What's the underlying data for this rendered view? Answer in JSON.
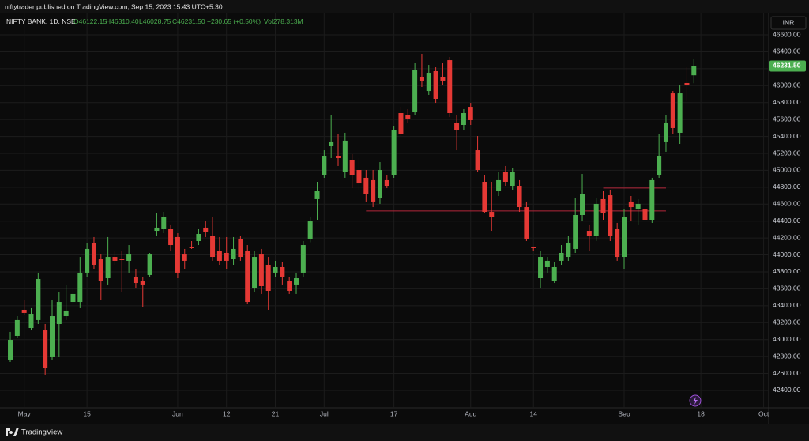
{
  "header": {
    "publisher": "niftytrader published on TradingView.com, Sep 15, 2023 15:43 UTC+5:30",
    "brand": "TradingView"
  },
  "chart_data": {
    "type": "candlestick",
    "title": "NIFTY BANK, 1D, NSE",
    "legend_values": [
      "O46122.15",
      "H46310.40",
      "L46028.75",
      "C46231.50",
      "+230.65 (+0.50%)",
      "Vol278.313M"
    ],
    "currency": "INR",
    "last_price_label": "46231.50",
    "up_color": "#4caf50",
    "down_color": "#e53935",
    "grid": true,
    "categories": [
      null,
      null,
      "May",
      null,
      null,
      null,
      null,
      null,
      null,
      null,
      null,
      "15",
      null,
      null,
      null,
      null,
      null,
      null,
      null,
      null,
      null,
      null,
      null,
      null,
      "Jun",
      null,
      null,
      null,
      null,
      null,
      null,
      "12",
      null,
      null,
      null,
      null,
      null,
      null,
      "21",
      null,
      null,
      null,
      null,
      null,
      null,
      "Jul",
      null,
      null,
      null,
      null,
      null,
      null,
      null,
      null,
      null,
      "17",
      null,
      null,
      null,
      null,
      null,
      null,
      null,
      null,
      null,
      null,
      "Aug",
      null,
      null,
      null,
      null,
      null,
      null,
      null,
      null,
      "14",
      null,
      null,
      null,
      null,
      null,
      null,
      null,
      null,
      null,
      null,
      null,
      null,
      "Sep",
      null,
      null,
      null,
      null,
      null,
      null,
      null,
      null,
      null,
      null,
      "18",
      null,
      null,
      null,
      null,
      null,
      null,
      null,
      null,
      "Oct"
    ],
    "open": [
      42764,
      43044,
      43352,
      43137,
      43231,
      43109,
      42792,
      43184,
      43277,
      43445,
      43445,
      43791,
      44136,
      43949,
      43725,
      43977,
      43949,
      43931,
      43744,
      43697,
      43763,
      44285,
      44304,
      44304,
      44211,
      44005,
      44090,
      44164,
      44323,
      44229,
      44043,
      44024,
      43949,
      44192,
      44043,
      43604,
      44005,
      43884,
      43791,
      43856,
      43697,
      43651,
      43791,
      44192,
      44659,
      44939,
      45284,
      45163,
      44976,
      45125,
      45004,
      44911,
      44883,
      44677,
      44883,
      44939,
      45676,
      45657,
      45685,
      46105,
      45937,
      46171,
      46096,
      46301,
      45564,
      45536,
      45741,
      45237,
      44864,
      44509,
      44752,
      44976,
      44817,
      44817,
      44565,
      44090,
      43725,
      43856,
      43697,
      43931,
      43977,
      44071,
      44472,
      44285,
      44229,
      44659,
      44705,
      44304,
      43977,
      44631,
      44537,
      44537,
      44416,
      44939,
      45331,
      45909,
      45443,
      46031,
      46122.15,
      null,
      null,
      null,
      null,
      null,
      null,
      null,
      null,
      null,
      null
    ],
    "high": [
      43091,
      43277,
      43464,
      43371,
      43791,
      43184,
      43464,
      43557,
      43651,
      43604,
      43977,
      44136,
      44211,
      44005,
      44211,
      44043,
      44043,
      44117,
      43837,
      43744,
      44024,
      44491,
      44509,
      44351,
      44257,
      44071,
      44164,
      44304,
      44397,
      44444,
      44211,
      44211,
      44211,
      44229,
      44117,
      44043,
      44071,
      43977,
      43931,
      43912,
      43744,
      43791,
      44164,
      44444,
      44864,
      45237,
      45657,
      45424,
      45443,
      45191,
      45144,
      45004,
      45004,
      45097,
      44939,
      45517,
      45751,
      45723,
      46264,
      46376,
      46245,
      46217,
      46264,
      46339,
      45657,
      45723,
      45797,
      45405,
      44939,
      44864,
      44976,
      45051,
      45032,
      44883,
      44631,
      44099,
      44043,
      43977,
      43912,
      44117,
      44229,
      44677,
      44957,
      44351,
      44677,
      44752,
      44771,
      44379,
      44537,
      44696,
      44659,
      44603,
      44911,
      45424,
      45657,
      45937,
      46003,
      46217,
      46310.4,
      null,
      null,
      null,
      null,
      null,
      null,
      null,
      null,
      null,
      null
    ],
    "low": [
      42736,
      43016,
      43296,
      43109,
      43184,
      42587,
      42764,
      42792,
      43231,
      43417,
      43371,
      43744,
      43837,
      43464,
      43651,
      43884,
      43557,
      43791,
      43604,
      43389,
      43744,
      44229,
      44257,
      44043,
      43725,
      43837,
      44071,
      44117,
      44211,
      43931,
      43884,
      43837,
      43884,
      43931,
      43417,
      43557,
      43539,
      43352,
      43744,
      43651,
      43539,
      43539,
      43744,
      44150,
      44416,
      44911,
      45144,
      45051,
      44911,
      44789,
      44771,
      44631,
      44565,
      44603,
      44789,
      44911,
      45405,
      45564,
      45657,
      45984,
      45891,
      45797,
      46003,
      45629,
      45237,
      45471,
      45536,
      44976,
      44491,
      44285,
      44696,
      44817,
      44771,
      44509,
      44164,
      44043,
      43604,
      43791,
      43669,
      43884,
      43931,
      44024,
      44397,
      44043,
      44164,
      44416,
      44164,
      43931,
      43837,
      44397,
      44351,
      44211,
      44379,
      44911,
      45219,
      45424,
      45312,
      45816,
      46028.75,
      null,
      null,
      null,
      null,
      null,
      null,
      null,
      null,
      null,
      null
    ],
    "close": [
      42997,
      43231,
      43315,
      43305,
      43716,
      42661,
      43277,
      43445,
      43343,
      43539,
      43791,
      44071,
      43884,
      43697,
      43977,
      43931,
      43940,
      44005,
      43669,
      43651,
      44005,
      44323,
      44444,
      44117,
      43791,
      43931,
      44080,
      44248,
      44276,
      43977,
      43931,
      43931,
      44071,
      43977,
      43445,
      43977,
      43632,
      43576,
      43856,
      43744,
      43576,
      43725,
      44117,
      44397,
      44752,
      45164,
      45331,
      45144,
      45350,
      44939,
      44845,
      44724,
      44631,
      45004,
      44817,
      45471,
      45424,
      45611,
      46189,
      46059,
      46152,
      45844,
      46059,
      45676,
      45471,
      45676,
      45592,
      45004,
      44509,
      44444,
      44883,
      44864,
      44976,
      44565,
      44192,
      44080,
      43977,
      43931,
      43856,
      44024,
      44136,
      44472,
      44724,
      44229,
      44603,
      44491,
      44229,
      43977,
      44444,
      44565,
      44603,
      44416,
      44883,
      45164,
      45564,
      45499,
      45909,
      46012,
      46231.5,
      null,
      null,
      null,
      null,
      null,
      null,
      null,
      null,
      null,
      null
    ],
    "levels": [
      {
        "value": 44520,
        "from": 51,
        "to": 94
      },
      {
        "value": 44790,
        "from": 85,
        "to": 94
      }
    ],
    "level_color": "#b2263a",
    "ylim": [
      42200,
      46700
    ],
    "yticks": [
      {
        "value": 42400,
        "label": "42400.00"
      },
      {
        "value": 42600,
        "label": "42600.00"
      },
      {
        "value": 42800,
        "label": "42800.00"
      },
      {
        "value": 43000,
        "label": "43000.00"
      },
      {
        "value": 43200,
        "label": "43200.00"
      },
      {
        "value": 43400,
        "label": "43400.00"
      },
      {
        "value": 43600,
        "label": "43600.00"
      },
      {
        "value": 43800,
        "label": "43800.00"
      },
      {
        "value": 44000,
        "label": "44000.00"
      },
      {
        "value": 44200,
        "label": "44200.00"
      },
      {
        "value": 44400,
        "label": "44400.00"
      },
      {
        "value": 44600,
        "label": "44600.00"
      },
      {
        "value": 44800,
        "label": "44800.00"
      },
      {
        "value": 45000,
        "label": "45000.00"
      },
      {
        "value": 45200,
        "label": "45200.00"
      },
      {
        "value": 45400,
        "label": "45400.00"
      },
      {
        "value": 45600,
        "label": "45600.00"
      },
      {
        "value": 45800,
        "label": "45800.00"
      },
      {
        "value": 46000,
        "label": "46000.00"
      },
      {
        "value": 46200,
        "label": "46200.00"
      },
      {
        "value": 46400,
        "label": "46400.00"
      },
      {
        "value": 46600,
        "label": "46600.00"
      }
    ]
  }
}
